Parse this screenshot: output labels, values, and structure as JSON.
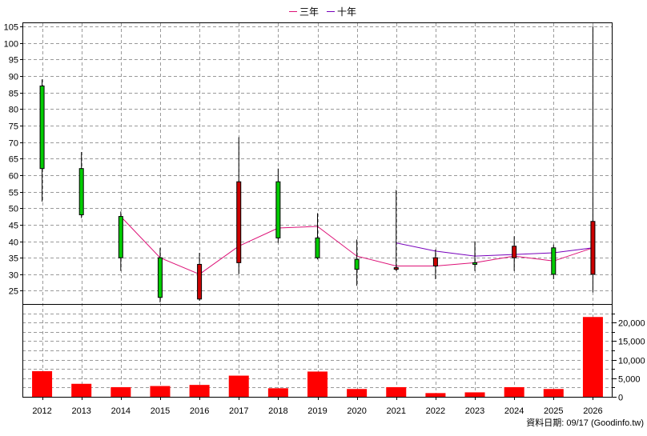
{
  "chart_data": [
    {
      "type": "candlestick",
      "title": "",
      "legend": [
        "三年",
        "十年"
      ],
      "legend_position": "top-center",
      "categories": [
        "2012",
        "2013",
        "2014",
        "2015",
        "2016",
        "2017",
        "2018",
        "2019",
        "2020",
        "2021",
        "2022",
        "2023",
        "2024",
        "2025",
        "2026"
      ],
      "ylim": [
        21,
        106
      ],
      "yticks": [
        25,
        30,
        35,
        40,
        45,
        50,
        55,
        60,
        65,
        70,
        75,
        80,
        85,
        90,
        95,
        100,
        105
      ],
      "grid": true,
      "candles": [
        {
          "x": "2012",
          "open": 62,
          "close": 87,
          "high": 89,
          "low": 52,
          "color": "#00cc00"
        },
        {
          "x": "2013",
          "open": 48,
          "close": 62,
          "high": 67,
          "low": 47,
          "color": "#00cc00"
        },
        {
          "x": "2014",
          "open": 35,
          "close": 47.5,
          "high": 49,
          "low": 31,
          "color": "#00cc00"
        },
        {
          "x": "2015",
          "open": 23,
          "close": 35,
          "high": 38,
          "low": 21.5,
          "color": "#00cc00"
        },
        {
          "x": "2016",
          "open": 33,
          "close": 22.5,
          "high": 36.5,
          "low": 22,
          "color": "#cc0000"
        },
        {
          "x": "2017",
          "open": 33.5,
          "close": 58,
          "high": 71.5,
          "low": 30,
          "color": "#cc0000"
        },
        {
          "x": "2018",
          "open": 41,
          "close": 58,
          "high": 62,
          "low": 39.5,
          "color": "#00cc00"
        },
        {
          "x": "2019",
          "open": 35,
          "close": 41,
          "high": 48.5,
          "low": 34.5,
          "color": "#00cc00"
        },
        {
          "x": "2020",
          "open": 31.5,
          "close": 34.5,
          "high": 40.5,
          "low": 26.5,
          "color": "#00cc00"
        },
        {
          "x": "2021",
          "open": 31.5,
          "close": 32,
          "high": 55.5,
          "low": 31,
          "color": "#cc0000"
        },
        {
          "x": "2022",
          "open": 32.5,
          "close": 35,
          "high": 37.5,
          "low": 28.5,
          "color": "#cc0000"
        },
        {
          "x": "2023",
          "open": 33,
          "close": 33.5,
          "high": 40,
          "low": 31,
          "color": "#00cc00"
        },
        {
          "x": "2024",
          "open": 35,
          "close": 38.5,
          "high": 41.5,
          "low": 31,
          "color": "#cc0000"
        },
        {
          "x": "2025",
          "open": 30,
          "close": 38,
          "high": 39,
          "low": 28.5,
          "color": "#00cc00"
        },
        {
          "x": "2026",
          "open": 30,
          "close": 46,
          "high": 105,
          "low": 24.5,
          "color": "#cc0000"
        }
      ],
      "series": [
        {
          "name": "三年",
          "color": "#dd1177",
          "x": [
            "2014",
            "2015",
            "2016",
            "2017",
            "2018",
            "2019",
            "2020",
            "2021",
            "2022",
            "2023",
            "2024",
            "2025",
            "2026"
          ],
          "values": [
            47.5,
            35,
            30,
            38.5,
            44,
            44.5,
            35.5,
            32.5,
            32.5,
            33.5,
            35.5,
            34,
            38
          ]
        },
        {
          "name": "十年",
          "color": "#7700bb",
          "x": [
            "2021",
            "2022",
            "2023",
            "2024",
            "2025",
            "2026"
          ],
          "values": [
            39.5,
            37,
            35.5,
            36,
            36.5,
            38
          ]
        }
      ]
    },
    {
      "type": "bar",
      "categories": [
        "2012",
        "2013",
        "2014",
        "2015",
        "2016",
        "2017",
        "2018",
        "2019",
        "2020",
        "2021",
        "2022",
        "2023",
        "2024",
        "2025",
        "2026"
      ],
      "values": [
        6900,
        3500,
        2600,
        2900,
        3200,
        5700,
        2300,
        6800,
        2100,
        2600,
        1000,
        1200,
        2600,
        2100,
        21500
      ],
      "color": "#ff0000",
      "ylim": [
        0,
        25000
      ],
      "yticks": [
        0,
        5000,
        10000,
        15000,
        20000
      ],
      "ytick_labels": [
        "0",
        "5,000",
        "10,000",
        "15,000",
        "20,000"
      ],
      "grid": true
    }
  ],
  "footer": "資料日期: 09/17  (Goodinfo.tw)"
}
